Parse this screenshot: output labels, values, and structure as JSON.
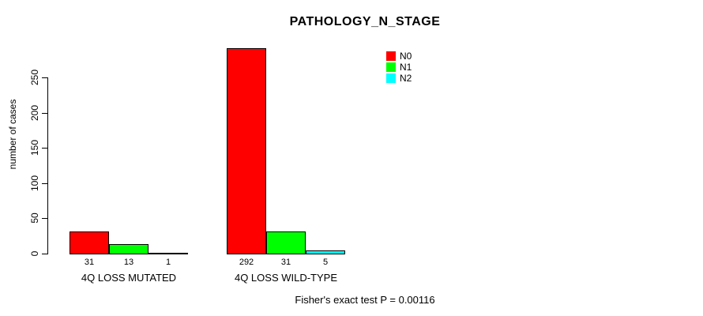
{
  "chart_data": {
    "type": "bar",
    "title": "PATHOLOGY_N_STAGE",
    "ylabel": "number of cases",
    "xlabel": "",
    "categories": [
      "4Q LOSS MUTATED",
      "4Q LOSS WILD-TYPE"
    ],
    "series": [
      {
        "name": "N0",
        "color": "#ff0000",
        "values": [
          31,
          292
        ]
      },
      {
        "name": "N1",
        "color": "#00ff00",
        "values": [
          13,
          31
        ]
      },
      {
        "name": "N2",
        "color": "#00ffff",
        "values": [
          1,
          5
        ]
      }
    ],
    "bar_value_labels": [
      [
        "31",
        "13",
        "1"
      ],
      [
        "292",
        "31",
        "5"
      ]
    ],
    "yticks": [
      0,
      50,
      100,
      150,
      200,
      250
    ],
    "ylim": [
      0,
      292
    ],
    "grid": false,
    "legend_position": "upper-center-right",
    "annotation": "Fisher's exact test P = 0.00116"
  },
  "legend": {
    "items": [
      {
        "label": "N0",
        "color": "#ff0000"
      },
      {
        "label": "N1",
        "color": "#00ff00"
      },
      {
        "label": "N2",
        "color": "#00ffff"
      }
    ]
  }
}
